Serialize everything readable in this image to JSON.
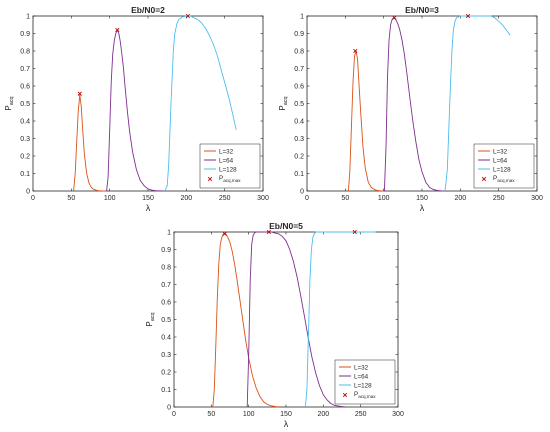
{
  "chart_data": [
    {
      "type": "line",
      "title": "Eb/N0=2",
      "xlabel": "λ",
      "ylabel": "P",
      "ylabel_sub": "acq",
      "xlim": [
        0,
        300
      ],
      "ylim": [
        0,
        1
      ],
      "xticks": [
        "0",
        "50",
        "100",
        "150",
        "200",
        "250",
        "300"
      ],
      "yticks": [
        "0",
        "0.1",
        "0.2",
        "0.3",
        "0.4",
        "0.5",
        "0.6",
        "0.7",
        "0.8",
        "0.9",
        "1"
      ],
      "grid": false,
      "legend": "bottom-right",
      "legend_marker_label": "P",
      "legend_marker_sub": "acq,max",
      "series": [
        {
          "name": "L=32",
          "color": "#d95319",
          "x": [
            53,
            55,
            57,
            59,
            61,
            63,
            65,
            67,
            70,
            73,
            76,
            79,
            82,
            85,
            88,
            91,
            95
          ],
          "y": [
            0,
            0.1,
            0.28,
            0.45,
            0.55,
            0.48,
            0.34,
            0.21,
            0.1,
            0.045,
            0.02,
            0.01,
            0.005,
            0.002,
            0.001,
            0,
            0
          ]
        },
        {
          "name": "L=64",
          "color": "#7e2f8e",
          "x": [
            96,
            98,
            100,
            102,
            104,
            106,
            108,
            110,
            112,
            114,
            116,
            118,
            120,
            123,
            126,
            130,
            135,
            140,
            145,
            150,
            155,
            160,
            165,
            170
          ],
          "y": [
            0,
            0.08,
            0.35,
            0.62,
            0.78,
            0.86,
            0.9,
            0.92,
            0.9,
            0.85,
            0.78,
            0.7,
            0.6,
            0.46,
            0.34,
            0.22,
            0.12,
            0.06,
            0.03,
            0.012,
            0.005,
            0.002,
            0.001,
            0
          ]
        },
        {
          "name": "L=128",
          "color": "#4dbeee",
          "x": [
            172,
            175,
            177,
            180,
            183,
            185,
            188,
            190,
            195,
            200,
            205,
            210,
            215,
            220,
            225,
            230,
            235,
            240,
            245,
            250,
            255,
            260,
            265
          ],
          "y": [
            0,
            0.03,
            0.15,
            0.5,
            0.8,
            0.9,
            0.96,
            0.98,
            0.995,
            1,
            1,
            0.99,
            0.98,
            0.96,
            0.93,
            0.89,
            0.84,
            0.78,
            0.7,
            0.62,
            0.54,
            0.45,
            0.35
          ]
        }
      ],
      "max_points": [
        {
          "x": 61,
          "y": 0.556
        },
        {
          "x": 110,
          "y": 0.92
        },
        {
          "x": 202,
          "y": 1.0
        }
      ]
    },
    {
      "type": "line",
      "title": "Eb/N0=3",
      "xlabel": "λ",
      "ylabel": "P",
      "ylabel_sub": "acq",
      "xlim": [
        0,
        300
      ],
      "ylim": [
        0,
        1
      ],
      "xticks": [
        "0",
        "50",
        "100",
        "150",
        "200",
        "250",
        "300"
      ],
      "yticks": [
        "0",
        "0.1",
        "0.2",
        "0.3",
        "0.4",
        "0.5",
        "0.6",
        "0.7",
        "0.8",
        "0.9",
        "1"
      ],
      "grid": false,
      "legend": "bottom-right",
      "legend_marker_label": "P",
      "legend_marker_sub": "acq,max",
      "series": [
        {
          "name": "L=32",
          "color": "#d95319",
          "x": [
            54,
            56,
            58,
            60,
            62,
            64,
            66,
            68,
            70,
            73,
            76,
            80,
            84,
            88,
            92,
            96,
            100
          ],
          "y": [
            0,
            0.12,
            0.38,
            0.62,
            0.77,
            0.8,
            0.75,
            0.6,
            0.45,
            0.25,
            0.13,
            0.05,
            0.02,
            0.008,
            0.003,
            0.001,
            0
          ]
        },
        {
          "name": "L=64",
          "color": "#7e2f8e",
          "x": [
            101,
            103,
            105,
            107,
            109,
            111,
            113,
            115,
            117,
            119,
            121,
            124,
            127,
            130,
            134,
            138,
            142,
            146,
            150,
            155,
            160,
            165,
            170,
            175,
            180
          ],
          "y": [
            0,
            0.25,
            0.65,
            0.86,
            0.95,
            0.98,
            0.99,
            0.985,
            0.97,
            0.95,
            0.92,
            0.86,
            0.78,
            0.68,
            0.54,
            0.4,
            0.28,
            0.18,
            0.11,
            0.05,
            0.02,
            0.008,
            0.003,
            0.001,
            0
          ]
        },
        {
          "name": "L=128",
          "color": "#4dbeee",
          "x": [
            180,
            183,
            185,
            187,
            189,
            191,
            193,
            195,
            200,
            205,
            210,
            215,
            220,
            225,
            230,
            235,
            240,
            245,
            250,
            255,
            260,
            265
          ],
          "y": [
            0,
            0.12,
            0.35,
            0.6,
            0.8,
            0.92,
            0.97,
            0.99,
            1,
            1,
            1,
            1,
            1,
            1,
            1,
            1,
            1,
            0.99,
            0.97,
            0.95,
            0.92,
            0.89
          ]
        }
      ],
      "max_points": [
        {
          "x": 63,
          "y": 0.8
        },
        {
          "x": 114,
          "y": 0.99
        },
        {
          "x": 210,
          "y": 1.0
        }
      ]
    },
    {
      "type": "line",
      "title": "Eb/N0=5",
      "xlabel": "λ",
      "ylabel": "P",
      "ylabel_sub": "acq",
      "xlim": [
        0,
        300
      ],
      "ylim": [
        0,
        1
      ],
      "xticks": [
        "0",
        "50",
        "100",
        "150",
        "200",
        "250",
        "300"
      ],
      "yticks": [
        "0",
        "0.1",
        "0.2",
        "0.3",
        "0.4",
        "0.5",
        "0.6",
        "0.7",
        "0.8",
        "0.9",
        "1"
      ],
      "grid": false,
      "legend": "bottom-right",
      "legend_marker_label": "P",
      "legend_marker_sub": "acq,max",
      "series": [
        {
          "name": "L=32",
          "color": "#d95319",
          "x": [
            52,
            54,
            56,
            58,
            60,
            62,
            64,
            66,
            68,
            70,
            72,
            75,
            78,
            81,
            84,
            88,
            92,
            96,
            100,
            105,
            110,
            115,
            120,
            125,
            130,
            135,
            140
          ],
          "y": [
            0,
            0.1,
            0.35,
            0.62,
            0.82,
            0.93,
            0.97,
            0.99,
            0.99,
            0.985,
            0.97,
            0.94,
            0.89,
            0.82,
            0.74,
            0.62,
            0.5,
            0.38,
            0.28,
            0.18,
            0.11,
            0.06,
            0.03,
            0.015,
            0.007,
            0.003,
            0
          ]
        },
        {
          "name": "L=64",
          "color": "#7e2f8e",
          "x": [
            98,
            100,
            102,
            104,
            106,
            108,
            110,
            115,
            120,
            125,
            130,
            135,
            140,
            145,
            150,
            155,
            160,
            165,
            170,
            175,
            180,
            185,
            190,
            195,
            200,
            205,
            210,
            215,
            220,
            225,
            230
          ],
          "y": [
            0,
            0.3,
            0.72,
            0.93,
            0.98,
            0.995,
            1,
            1,
            1,
            1,
            1,
            0.995,
            0.99,
            0.975,
            0.95,
            0.9,
            0.83,
            0.74,
            0.63,
            0.51,
            0.39,
            0.28,
            0.19,
            0.12,
            0.07,
            0.04,
            0.02,
            0.01,
            0.005,
            0.002,
            0
          ]
        },
        {
          "name": "L=128",
          "color": "#4dbeee",
          "x": [
            176,
            178,
            180,
            182,
            184,
            186,
            188,
            190,
            192,
            195,
            200,
            210,
            220,
            230,
            240,
            250,
            260,
            270
          ],
          "y": [
            0,
            0.1,
            0.4,
            0.72,
            0.9,
            0.97,
            0.99,
            1,
            1,
            1,
            1,
            1,
            1,
            1,
            1,
            1,
            1,
            1
          ]
        }
      ],
      "max_points": [
        {
          "x": 68,
          "y": 0.99
        },
        {
          "x": 127,
          "y": 1.0
        },
        {
          "x": 242,
          "y": 1.0
        }
      ]
    }
  ]
}
